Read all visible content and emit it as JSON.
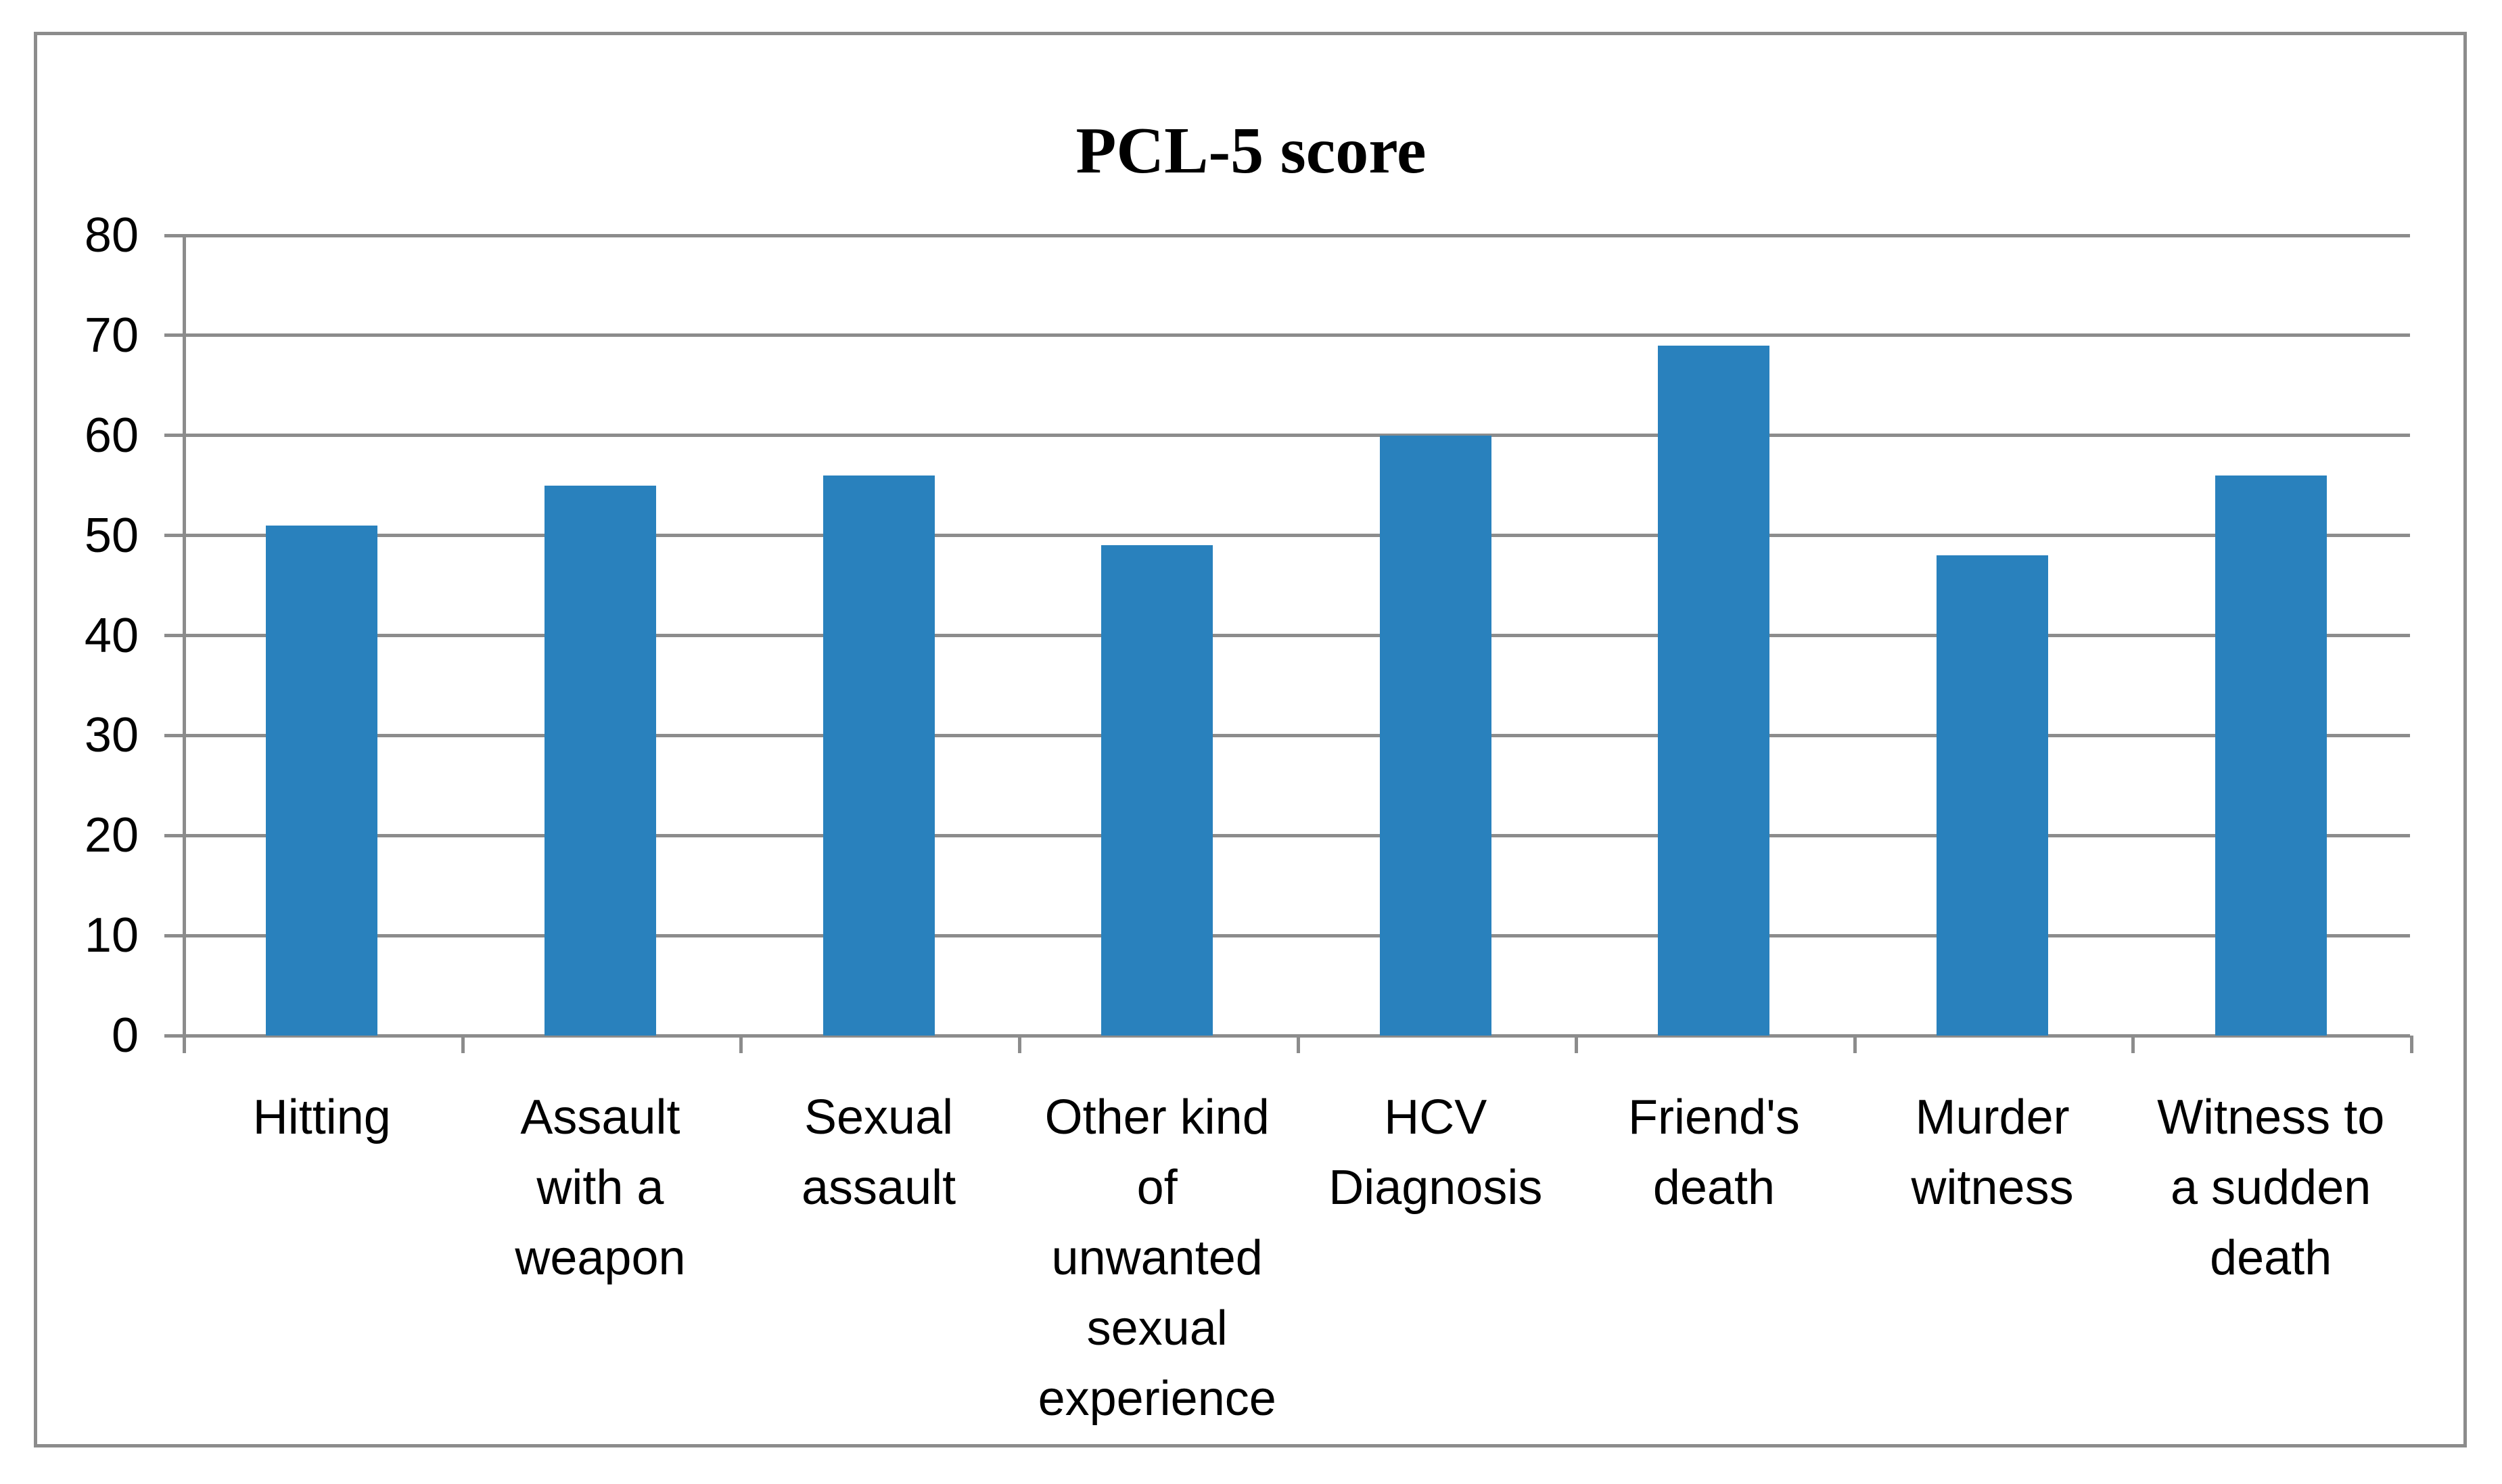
{
  "chart_data": {
    "type": "bar",
    "title": "PCL-5 score",
    "categories": [
      "Hitting",
      "Assault with a weapon",
      "Sexual assault",
      "Other kind of unwanted sexual experience",
      "HCV Diagnosis",
      "Friend's death",
      "Murder witness",
      "Witness to a sudden death"
    ],
    "category_label_lines": [
      [
        "Hitting"
      ],
      [
        "Assault",
        "with a",
        "weapon"
      ],
      [
        "Sexual",
        "assault"
      ],
      [
        "Other kind",
        "of",
        "unwanted",
        "sexual",
        "experience"
      ],
      [
        "HCV",
        "Diagnosis"
      ],
      [
        "Friend's",
        "death"
      ],
      [
        "Murder",
        "witness"
      ],
      [
        "Witness to",
        "a sudden",
        "death"
      ]
    ],
    "values": [
      51,
      55,
      56,
      49,
      60,
      69,
      48,
      56
    ],
    "xlabel": "",
    "ylabel": "",
    "ylim": [
      0,
      80
    ],
    "ytick_interval": 10,
    "ytick_labels": [
      "0",
      "10",
      "20",
      "30",
      "40",
      "50",
      "60",
      "70",
      "80"
    ],
    "grid": true,
    "legend_position": "none",
    "bar_color": "#2981BD",
    "grid_color": "#8C8C8C",
    "border_color": "#8C8C8C",
    "text_color": "#000000",
    "background_color": "#FFFFFF"
  }
}
